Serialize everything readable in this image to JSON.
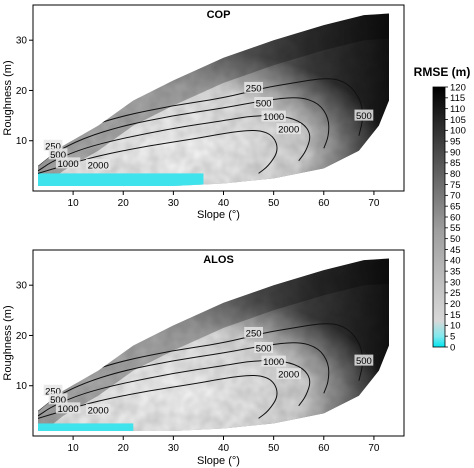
{
  "chart_data": [
    {
      "type": "heatmap",
      "title": "COP",
      "xlabel": "Slope (°)",
      "ylabel": "Roughness (m)",
      "xlim": [
        2,
        76
      ],
      "ylim": [
        0,
        37
      ],
      "xticks": [
        10,
        20,
        30,
        40,
        50,
        60,
        70
      ],
      "yticks": [
        10,
        20,
        30
      ],
      "contour_levels": [
        250,
        500,
        1000,
        2000
      ],
      "data_region": {
        "upper_edge": [
          [
            3,
            5
          ],
          [
            8,
            9
          ],
          [
            15,
            13
          ],
          [
            22,
            18
          ],
          [
            30,
            22
          ],
          [
            40,
            26.5
          ],
          [
            50,
            30
          ],
          [
            60,
            33
          ],
          [
            68,
            35
          ],
          [
            73,
            35.3
          ]
        ],
        "lower_edge": [
          [
            3,
            1
          ],
          [
            30,
            1
          ],
          [
            40,
            1.5
          ],
          [
            50,
            2.5
          ],
          [
            60,
            4.5
          ],
          [
            67,
            8
          ],
          [
            71,
            13
          ],
          [
            73,
            18
          ]
        ],
        "right_edge_x": 73
      },
      "contours": [
        {
          "level": 250,
          "label": "250",
          "points": [
            [
              3,
              6
            ],
            [
              6,
              9
            ],
            [
              12,
              12.5
            ],
            [
              20,
              15
            ],
            [
              30,
              17
            ],
            [
              40,
              18.5
            ],
            [
              48,
              20.5
            ],
            [
              54,
              21.5
            ],
            [
              60,
              22.5
            ],
            [
              64,
              22
            ],
            [
              67,
              19
            ],
            [
              68,
              15
            ],
            [
              67,
              11
            ]
          ]
        },
        {
          "level": 500,
          "label": "500",
          "points": [
            [
              3,
              5
            ],
            [
              6,
              7.5
            ],
            [
              12,
              10.5
            ],
            [
              20,
              13
            ],
            [
              30,
              15
            ],
            [
              40,
              16.5
            ],
            [
              48,
              18
            ],
            [
              55,
              18.8
            ],
            [
              59,
              17.5
            ],
            [
              61,
              14.5
            ],
            [
              61,
              11
            ],
            [
              60,
              8.5
            ]
          ]
        },
        {
          "level": 1000,
          "label": "1000",
          "points": [
            [
              3,
              4
            ],
            [
              6,
              6
            ],
            [
              12,
              8.5
            ],
            [
              20,
              10.5
            ],
            [
              30,
              12.5
            ],
            [
              40,
              14
            ],
            [
              46,
              15
            ],
            [
              52,
              15
            ],
            [
              56,
              13.5
            ],
            [
              57.5,
              11
            ],
            [
              56.5,
              8
            ],
            [
              55,
              6
            ]
          ]
        },
        {
          "level": 2000,
          "label": "2000",
          "points": [
            [
              3,
              3.5
            ],
            [
              8,
              5
            ],
            [
              15,
              7
            ],
            [
              25,
              9
            ],
            [
              35,
              10.5
            ],
            [
              42,
              11.8
            ],
            [
              47,
              12.2
            ],
            [
              50,
              11
            ],
            [
              51,
              8
            ],
            [
              49,
              5
            ],
            [
              47,
              3.5
            ]
          ]
        }
      ],
      "contour_labels": [
        {
          "text": "250",
          "x": 46,
          "y": 20.5
        },
        {
          "text": "500",
          "x": 48,
          "y": 17.5
        },
        {
          "text": "1000",
          "x": 50,
          "y": 14.8
        },
        {
          "text": "2000",
          "x": 53,
          "y": 12.3
        },
        {
          "text": "500",
          "x": 68,
          "y": 15
        },
        {
          "text": "250",
          "x": 6,
          "y": 9
        },
        {
          "text": "500",
          "x": 7,
          "y": 7.3
        },
        {
          "text": "1000",
          "x": 9,
          "y": 5.5
        },
        {
          "text": "2000",
          "x": 15,
          "y": 5.2
        }
      ],
      "low_rmse_band": {
        "x": [
          3,
          36
        ],
        "y": [
          1,
          3.5
        ]
      }
    },
    {
      "type": "heatmap",
      "title": "ALOS",
      "xlabel": "Slope (°)",
      "ylabel": "Roughness (m)",
      "xlim": [
        2,
        76
      ],
      "ylim": [
        0,
        37
      ],
      "xticks": [
        10,
        20,
        30,
        40,
        50,
        60,
        70
      ],
      "yticks": [
        10,
        20,
        30
      ],
      "contour_levels": [
        250,
        500,
        1000,
        2000
      ],
      "data_region": {
        "upper_edge": [
          [
            3,
            5
          ],
          [
            8,
            9
          ],
          [
            15,
            13
          ],
          [
            22,
            18
          ],
          [
            30,
            22
          ],
          [
            40,
            26.5
          ],
          [
            50,
            30
          ],
          [
            60,
            33
          ],
          [
            68,
            35
          ],
          [
            73,
            35.3
          ]
        ],
        "lower_edge": [
          [
            3,
            1
          ],
          [
            30,
            1
          ],
          [
            40,
            1.5
          ],
          [
            50,
            2.5
          ],
          [
            60,
            4.5
          ],
          [
            67,
            8
          ],
          [
            71,
            13
          ],
          [
            73,
            18
          ]
        ],
        "right_edge_x": 73
      },
      "contours": [
        {
          "level": 250,
          "label": "250",
          "points": [
            [
              3,
              6
            ],
            [
              6,
              9
            ],
            [
              12,
              12.5
            ],
            [
              20,
              15
            ],
            [
              30,
              17
            ],
            [
              40,
              18.5
            ],
            [
              48,
              20.5
            ],
            [
              54,
              21.5
            ],
            [
              60,
              22.5
            ],
            [
              64,
              22
            ],
            [
              67,
              19
            ],
            [
              68,
              15
            ],
            [
              67,
              11
            ]
          ]
        },
        {
          "level": 500,
          "label": "500",
          "points": [
            [
              3,
              5
            ],
            [
              6,
              7.5
            ],
            [
              12,
              10.5
            ],
            [
              20,
              13
            ],
            [
              30,
              15
            ],
            [
              40,
              16.5
            ],
            [
              48,
              18
            ],
            [
              55,
              18.8
            ],
            [
              59,
              17.5
            ],
            [
              61,
              14.5
            ],
            [
              61,
              11
            ],
            [
              60,
              8.5
            ]
          ]
        },
        {
          "level": 1000,
          "label": "1000",
          "points": [
            [
              3,
              4
            ],
            [
              6,
              6
            ],
            [
              12,
              8.5
            ],
            [
              20,
              10.5
            ],
            [
              30,
              12.5
            ],
            [
              40,
              14
            ],
            [
              46,
              15
            ],
            [
              52,
              15
            ],
            [
              56,
              13.5
            ],
            [
              57.5,
              11
            ],
            [
              56.5,
              8
            ],
            [
              55,
              6
            ]
          ]
        },
        {
          "level": 2000,
          "label": "2000",
          "points": [
            [
              3,
              3.5
            ],
            [
              8,
              5
            ],
            [
              15,
              7
            ],
            [
              25,
              9
            ],
            [
              35,
              10.5
            ],
            [
              42,
              11.8
            ],
            [
              47,
              12.2
            ],
            [
              50,
              11
            ],
            [
              51,
              8
            ],
            [
              49,
              5
            ],
            [
              47,
              3.5
            ]
          ]
        }
      ],
      "contour_labels": [
        {
          "text": "250",
          "x": 46,
          "y": 20.5
        },
        {
          "text": "500",
          "x": 48,
          "y": 17.5
        },
        {
          "text": "1000",
          "x": 50,
          "y": 14.8
        },
        {
          "text": "2000",
          "x": 53,
          "y": 12.3
        },
        {
          "text": "500",
          "x": 68,
          "y": 15
        },
        {
          "text": "250",
          "x": 6,
          "y": 9
        },
        {
          "text": "500",
          "x": 7,
          "y": 7.3
        },
        {
          "text": "1000",
          "x": 9,
          "y": 5.5
        },
        {
          "text": "2000",
          "x": 15,
          "y": 5.2
        }
      ],
      "low_rmse_band": {
        "x": [
          3,
          22
        ],
        "y": [
          1,
          2.5
        ]
      }
    }
  ],
  "colorbar": {
    "title": "RMSE (m)",
    "min": 0,
    "max": 120,
    "ticks": [
      0,
      5,
      10,
      15,
      20,
      25,
      30,
      35,
      40,
      45,
      50,
      55,
      60,
      65,
      70,
      75,
      80,
      85,
      90,
      95,
      100,
      105,
      110,
      115,
      120
    ],
    "colors": {
      "low": "#00e5ee",
      "mid": "#cccccc",
      "high": "#000000"
    }
  },
  "colors": {
    "contour": "#111111",
    "region_light": "#eeeeee",
    "region_dark": "#0c0c0c",
    "low_band": "#3fe3ec"
  }
}
